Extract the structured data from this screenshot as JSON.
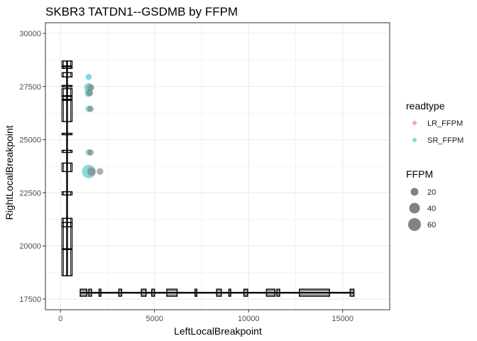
{
  "chart_data": {
    "type": "scatter",
    "title": "SKBR3 TATDN1--GSDMB by FFPM",
    "xlabel": "LeftLocalBreakpoint",
    "ylabel": "RightLocalBreakpoint",
    "xlim": [
      -800,
      17500
    ],
    "ylim": [
      17000,
      30500
    ],
    "x_ticks": [
      0,
      5000,
      10000,
      15000
    ],
    "x_tick_labels": [
      "0",
      "5000",
      "10000",
      "15000"
    ],
    "y_ticks": [
      17500,
      20000,
      22500,
      25000,
      27500,
      30000
    ],
    "y_tick_labels": [
      "17500",
      "20000",
      "22500",
      "25000",
      "27500",
      "30000"
    ],
    "grid": true,
    "legend_placement": "right",
    "colors": {
      "LR_FFPM": "#f08a86",
      "SR_FFPM": "#5ccfcf",
      "gray": "#7f7f7f",
      "panel_border": "#333333",
      "grid": "#ebebeb"
    },
    "series": [
      {
        "name": "SR_FFPM",
        "points": [
          {
            "x": 1500,
            "y": 27950,
            "ffpm": 3
          },
          {
            "x": 1500,
            "y": 27450,
            "ffpm": 12
          },
          {
            "x": 1500,
            "y": 27200,
            "ffpm": 8
          },
          {
            "x": 1500,
            "y": 26450,
            "ffpm": 3
          },
          {
            "x": 1500,
            "y": 24400,
            "ffpm": 3
          },
          {
            "x": 1500,
            "y": 23500,
            "ffpm": 40
          }
        ]
      },
      {
        "name": "gray",
        "points": [
          {
            "x": 1600,
            "y": 27450,
            "ffpm": 5
          },
          {
            "x": 1550,
            "y": 27200,
            "ffpm": 4
          },
          {
            "x": 1600,
            "y": 26450,
            "ffpm": 3
          },
          {
            "x": 1600,
            "y": 24400,
            "ffpm": 3
          },
          {
            "x": 1650,
            "y": 23500,
            "ffpm": 10
          },
          {
            "x": 2100,
            "y": 23500,
            "ffpm": 4
          }
        ]
      }
    ],
    "gene_left": {
      "axis": "x",
      "baseline": 17800,
      "exons": [
        [
          1050,
          1400
        ],
        [
          1500,
          1650
        ],
        [
          2050,
          2150
        ],
        [
          3100,
          3250
        ],
        [
          4300,
          4550
        ],
        [
          4850,
          5000
        ],
        [
          5650,
          6200
        ],
        [
          7150,
          7250
        ],
        [
          8300,
          8550
        ],
        [
          8950,
          9050
        ],
        [
          9750,
          9950
        ],
        [
          10950,
          11400
        ],
        [
          11500,
          11650
        ],
        [
          12700,
          14300
        ],
        [
          15400,
          15600
        ]
      ]
    },
    "gene_right": {
      "axis": "y",
      "baseline": 350,
      "exons": [
        [
          18600,
          21300
        ],
        [
          20900,
          21100
        ],
        [
          22400,
          22550
        ],
        [
          23500,
          23900
        ],
        [
          24400,
          24500
        ],
        [
          25250,
          25300
        ],
        [
          25850,
          26850
        ],
        [
          26900,
          27400
        ],
        [
          27500,
          27550
        ],
        [
          27950,
          28150
        ],
        [
          28350,
          28700
        ]
      ],
      "ticks": [
        19850,
        27050,
        28450
      ]
    },
    "legend": {
      "readtype_title": "readtype",
      "readtype_entries": [
        "LR_FFPM",
        "SR_FFPM"
      ],
      "ffpm_title": "FFPM",
      "ffpm_entries": [
        20,
        40,
        60
      ]
    }
  }
}
